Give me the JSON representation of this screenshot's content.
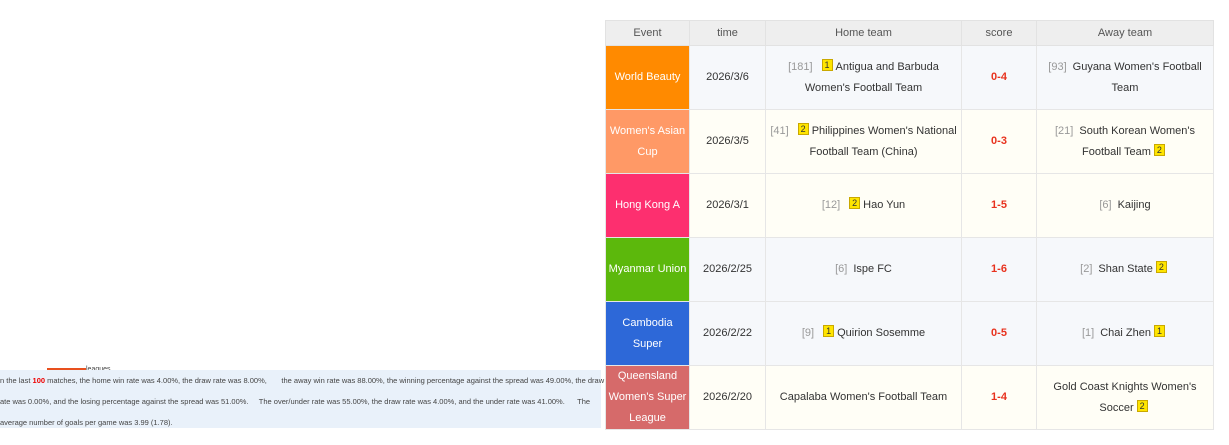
{
  "stats": {
    "tab_label": "leagues",
    "prefix": "n the last",
    "count": "100",
    "line1_rest": " matches, the home win rate was 4.00%, the draw rate was 8.00%,       the away win rate was 88.00%, the winning percentage against the spread was 49.00%, the draw",
    "line2": "ate was 0.00%, and the losing percentage against the spread was 51.00%.     The over/under rate was 55.00%, the draw rate was 4.00%, and the under rate was 41.00%.      The",
    "line3": "average number of goals per game was 3.99 (1.78)."
  },
  "table": {
    "headers": [
      "Event",
      "time",
      "Home team",
      "score",
      "Away team"
    ],
    "rows": [
      {
        "event": "World Beauty",
        "color": "#ff8a00",
        "time": "2026/3/6",
        "home_rank": "[181]",
        "home_badge": "1",
        "home": "Antigua and Barbuda Women's Football Team",
        "score": "0-4",
        "away_rank": "[93]",
        "away": "Guyana Women's Football Team",
        "away_badge": ""
      },
      {
        "event": "Women's Asian Cup",
        "color": "#ff9966",
        "time": "2026/3/5",
        "home_rank": "[41]",
        "home_badge": "2",
        "home": "Philippines Women's National Football Team (China)",
        "score": "0-3",
        "away_rank": "[21]",
        "away": "South Korean Women's Football Team",
        "away_badge": "2"
      },
      {
        "event": "Hong Kong A",
        "color": "#fd2f6f",
        "time": "2026/3/1",
        "home_rank": "[12]",
        "home_badge": "2",
        "home": "Hao Yun",
        "score": "1-5",
        "away_rank": "[6]",
        "away": "Kaijing",
        "away_badge": ""
      },
      {
        "event": "Myanmar Union",
        "color": "#5cb80c",
        "time": "2026/2/25",
        "home_rank": "[6]",
        "home_badge": "",
        "home": "Ispe FC",
        "score": "1-6",
        "away_rank": "[2]",
        "away": "Shan State",
        "away_badge": "2"
      },
      {
        "event": "Cambodia Super",
        "color": "#2d68d8",
        "time": "2026/2/22",
        "home_rank": "[9]",
        "home_badge": "1",
        "home": "Quirion Sosemme",
        "score": "0-5",
        "away_rank": "[1]",
        "away": "Chai Zhen",
        "away_badge": "1"
      },
      {
        "event": "Queensland Women's Super League",
        "color": "#d66a6a",
        "time": "2026/2/20",
        "home_rank": "",
        "home_badge": "",
        "home": "Capalaba Women's Football Team",
        "score": "1-4",
        "away_rank": "",
        "away": "Gold Coast Knights Women's Soccer",
        "away_badge": "2"
      }
    ]
  }
}
